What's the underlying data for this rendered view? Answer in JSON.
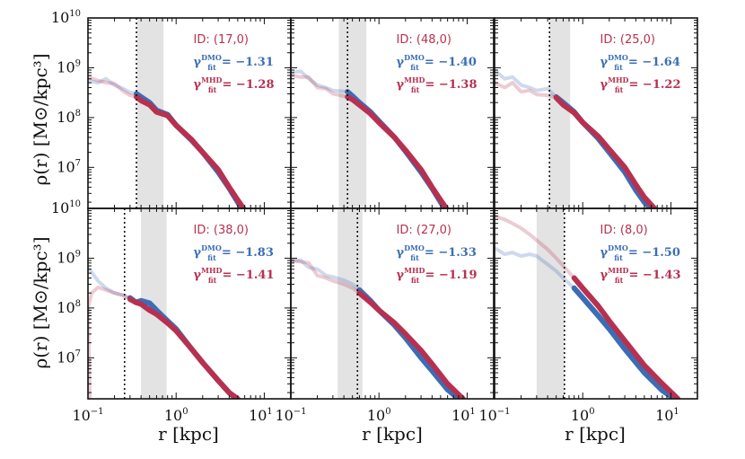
{
  "chart_data": {
    "type": "line",
    "layout": "2x3 grid of log-log panels",
    "xlabel": "r [kpc]",
    "ylabel": "ρ(r) [M⊙/kpc³]",
    "xlim": [
      0.1,
      20
    ],
    "ylim": [
      1500000.0,
      10000000000.0
    ],
    "x_ticks": [
      "10",
      "10",
      "10"
    ],
    "x_tick_exponents": [
      "−1",
      "0",
      "1"
    ],
    "y_ticks": [
      "10",
      "10",
      "10",
      "10",
      "10"
    ],
    "y_tick_exponents": [
      "7",
      "8",
      "9",
      "10",
      "10"
    ],
    "colors": {
      "dmo": "#3b6db5",
      "mhd": "#b83050",
      "shade": "#e3e3e3"
    },
    "gamma_dmo_symbol": "γ",
    "gamma_dmo_sup": "DMO",
    "gamma_mhd_sup": "MHD",
    "gamma_sub": "fit",
    "panels": [
      {
        "id": "ID: (17,0)",
        "gamma_dmo": "= −1.31",
        "gamma_mhd": "= −1.28",
        "shade": [
          0.36,
          0.72
        ],
        "vline": 0.355,
        "dmo": [
          [
            0.1,
            550000000.0
          ],
          [
            0.13,
            500000000.0
          ],
          [
            0.16,
            600000000.0
          ],
          [
            0.2,
            450000000.0
          ],
          [
            0.25,
            380000000.0
          ],
          [
            0.3,
            320000000.0
          ],
          [
            0.355,
            300000000.0
          ],
          [
            0.4,
            260000000.0
          ],
          [
            0.5,
            200000000.0
          ],
          [
            0.6,
            140000000.0
          ],
          [
            0.8,
            115000000.0
          ],
          [
            1.0,
            70000000.0
          ],
          [
            1.5,
            35000000.0
          ],
          [
            2.0,
            20000000.0
          ],
          [
            3.0,
            8000000.0
          ],
          [
            4.0,
            3800000.0
          ],
          [
            5.0,
            2000000.0
          ],
          [
            5.5,
            1500000.0
          ]
        ],
        "mhd": [
          [
            0.1,
            650000000.0
          ],
          [
            0.13,
            550000000.0
          ],
          [
            0.16,
            500000000.0
          ],
          [
            0.2,
            480000000.0
          ],
          [
            0.25,
            340000000.0
          ],
          [
            0.3,
            280000000.0
          ],
          [
            0.355,
            260000000.0
          ],
          [
            0.4,
            220000000.0
          ],
          [
            0.5,
            180000000.0
          ],
          [
            0.6,
            130000000.0
          ],
          [
            0.8,
            110000000.0
          ],
          [
            1.0,
            70000000.0
          ],
          [
            1.5,
            36000000.0
          ],
          [
            2.0,
            20000000.0
          ],
          [
            3.0,
            9000000.0
          ],
          [
            4.0,
            4000000.0
          ],
          [
            5.0,
            2200000.0
          ],
          [
            5.8,
            1500000.0
          ]
        ]
      },
      {
        "id": "ID: (48,0)",
        "gamma_dmo": "= −1.40",
        "gamma_mhd": "= −1.38",
        "shade": [
          0.35,
          0.72
        ],
        "vline": 0.44,
        "dmo": [
          [
            0.1,
            800000000.0
          ],
          [
            0.13,
            850000000.0
          ],
          [
            0.16,
            600000000.0
          ],
          [
            0.2,
            450000000.0
          ],
          [
            0.25,
            400000000.0
          ],
          [
            0.3,
            350000000.0
          ],
          [
            0.44,
            330000000.0
          ],
          [
            0.5,
            270000000.0
          ],
          [
            0.6,
            200000000.0
          ],
          [
            0.8,
            130000000.0
          ],
          [
            1.0,
            85000000.0
          ],
          [
            1.5,
            40000000.0
          ],
          [
            2.0,
            21000000.0
          ],
          [
            3.0,
            8000000.0
          ],
          [
            4.0,
            3800000.0
          ],
          [
            5.0,
            2000000.0
          ],
          [
            5.6,
            1500000.0
          ]
        ],
        "mhd": [
          [
            0.1,
            700000000.0
          ],
          [
            0.13,
            650000000.0
          ],
          [
            0.16,
            650000000.0
          ],
          [
            0.2,
            400000000.0
          ],
          [
            0.25,
            380000000.0
          ],
          [
            0.3,
            300000000.0
          ],
          [
            0.44,
            260000000.0
          ],
          [
            0.5,
            230000000.0
          ],
          [
            0.6,
            180000000.0
          ],
          [
            0.8,
            120000000.0
          ],
          [
            1.0,
            80000000.0
          ],
          [
            1.5,
            40000000.0
          ],
          [
            2.0,
            22000000.0
          ],
          [
            3.0,
            9000000.0
          ],
          [
            4.0,
            4000000.0
          ],
          [
            5.0,
            2200000.0
          ],
          [
            5.8,
            1500000.0
          ]
        ]
      },
      {
        "id": "ID: (25,0)",
        "gamma_dmo": "= −1.64",
        "gamma_mhd": "= −1.22",
        "shade": [
          0.42,
          0.72
        ],
        "vline": 0.42,
        "dmo": [
          [
            0.1,
            900000000.0
          ],
          [
            0.13,
            600000000.0
          ],
          [
            0.16,
            650000000.0
          ],
          [
            0.2,
            450000000.0
          ],
          [
            0.25,
            400000000.0
          ],
          [
            0.3,
            350000000.0
          ],
          [
            0.4,
            380000000.0
          ],
          [
            0.5,
            260000000.0
          ],
          [
            0.6,
            200000000.0
          ],
          [
            0.8,
            130000000.0
          ],
          [
            1.0,
            80000000.0
          ],
          [
            1.5,
            38000000.0
          ],
          [
            2.0,
            20000000.0
          ],
          [
            3.0,
            8000000.0
          ],
          [
            4.0,
            3500000.0
          ],
          [
            5.0,
            2000000.0
          ],
          [
            6.0,
            1500000.0
          ]
        ],
        "mhd": [
          [
            0.1,
            500000000.0
          ],
          [
            0.13,
            400000000.0
          ],
          [
            0.16,
            500000000.0
          ],
          [
            0.2,
            330000000.0
          ],
          [
            0.25,
            350000000.0
          ],
          [
            0.3,
            290000000.0
          ],
          [
            0.4,
            280000000.0
          ],
          [
            0.5,
            250000000.0
          ],
          [
            0.6,
            180000000.0
          ],
          [
            0.8,
            125000000.0
          ],
          [
            1.0,
            80000000.0
          ],
          [
            1.5,
            42000000.0
          ],
          [
            2.0,
            23000000.0
          ],
          [
            3.0,
            10000000.0
          ],
          [
            4.0,
            4500000.0
          ],
          [
            5.0,
            2500000.0
          ],
          [
            6.5,
            1500000.0
          ]
        ]
      },
      {
        "id": "ID: (38,0)",
        "gamma_dmo": "= −1.83",
        "gamma_mhd": "= −1.41",
        "shade": [
          0.4,
          0.78
        ],
        "vline": 0.26,
        "dmo": [
          [
            0.1,
            650000000.0
          ],
          [
            0.13,
            350000000.0
          ],
          [
            0.16,
            250000000.0
          ],
          [
            0.2,
            200000000.0
          ],
          [
            0.25,
            180000000.0
          ],
          [
            0.3,
            160000000.0
          ],
          [
            0.35,
            130000000.0
          ],
          [
            0.4,
            140000000.0
          ],
          [
            0.5,
            125000000.0
          ],
          [
            0.6,
            90000000.0
          ],
          [
            0.8,
            55000000.0
          ],
          [
            1.0,
            38000000.0
          ],
          [
            1.5,
            15000000.0
          ],
          [
            2.0,
            8000000.0
          ],
          [
            3.0,
            3500000.0
          ],
          [
            4.0,
            2000000.0
          ],
          [
            4.8,
            1500000.0
          ]
        ],
        "mhd": [
          [
            0.1,
            100000000.0
          ],
          [
            0.105,
            1500000.0
          ],
          [
            0.1,
            100000000.0
          ],
          [
            0.11,
            200000000.0
          ],
          [
            0.13,
            260000000.0
          ],
          [
            0.16,
            230000000.0
          ],
          [
            0.2,
            200000000.0
          ],
          [
            0.25,
            180000000.0
          ],
          [
            0.3,
            150000000.0
          ],
          [
            0.35,
            130000000.0
          ],
          [
            0.4,
            120000000.0
          ],
          [
            0.5,
            90000000.0
          ],
          [
            0.6,
            75000000.0
          ],
          [
            0.8,
            50000000.0
          ],
          [
            1.0,
            35000000.0
          ],
          [
            1.5,
            15000000.0
          ],
          [
            2.0,
            8000000.0
          ],
          [
            3.0,
            3500000.0
          ],
          [
            4.0,
            2000000.0
          ],
          [
            5.0,
            1500000.0
          ]
        ]
      },
      {
        "id": "ID: (27,0)",
        "gamma_dmo": "= −1.33",
        "gamma_mhd": "= −1.19",
        "shade": [
          0.34,
          0.65
        ],
        "vline": 0.57,
        "dmo": [
          [
            0.1,
            900000000.0
          ],
          [
            0.13,
            900000000.0
          ],
          [
            0.16,
            650000000.0
          ],
          [
            0.2,
            600000000.0
          ],
          [
            0.25,
            450000000.0
          ],
          [
            0.3,
            420000000.0
          ],
          [
            0.4,
            360000000.0
          ],
          [
            0.5,
            300000000.0
          ],
          [
            0.6,
            230000000.0
          ],
          [
            0.8,
            140000000.0
          ],
          [
            1.0,
            90000000.0
          ],
          [
            1.5,
            45000000.0
          ],
          [
            2.0,
            25000000.0
          ],
          [
            3.0,
            10000000.0
          ],
          [
            4.0,
            5500000.0
          ],
          [
            6.0,
            2300000.0
          ],
          [
            8.0,
            1500000.0
          ]
        ],
        "mhd": [
          [
            0.1,
            900000000.0
          ],
          [
            0.13,
            850000000.0
          ],
          [
            0.16,
            800000000.0
          ],
          [
            0.2,
            450000000.0
          ],
          [
            0.25,
            400000000.0
          ],
          [
            0.3,
            350000000.0
          ],
          [
            0.4,
            300000000.0
          ],
          [
            0.5,
            250000000.0
          ],
          [
            0.6,
            200000000.0
          ],
          [
            0.8,
            130000000.0
          ],
          [
            1.0,
            90000000.0
          ],
          [
            1.5,
            50000000.0
          ],
          [
            2.0,
            30000000.0
          ],
          [
            3.0,
            14000000.0
          ],
          [
            4.0,
            7500000.0
          ],
          [
            6.0,
            3000000.0
          ],
          [
            9.0,
            1500000.0
          ]
        ]
      },
      {
        "id": "ID: (8,0)",
        "gamma_dmo": "= −1.50",
        "gamma_mhd": "= −1.43",
        "shade": [
          0.3,
          0.62
        ],
        "vline": 0.62,
        "dmo": [
          [
            0.1,
            1600000000.0
          ],
          [
            0.13,
            1200000000.0
          ],
          [
            0.16,
            1300000000.0
          ],
          [
            0.2,
            1100000000.0
          ],
          [
            0.25,
            1200000000.0
          ],
          [
            0.3,
            1100000000.0
          ],
          [
            0.4,
            750000000.0
          ],
          [
            0.5,
            550000000.0
          ],
          [
            0.6,
            400000000.0
          ],
          [
            0.8,
            250000000.0
          ],
          [
            1.0,
            160000000.0
          ],
          [
            1.5,
            70000000.0
          ],
          [
            2.0,
            38000000.0
          ],
          [
            3.0,
            15000000.0
          ],
          [
            5.0,
            5000000.0
          ],
          [
            8.0,
            2200000.0
          ],
          [
            11.0,
            1500000.0
          ]
        ],
        "mhd": [
          [
            0.1,
            7000000000.0
          ],
          [
            0.13,
            6000000000.0
          ],
          [
            0.16,
            5000000000.0
          ],
          [
            0.2,
            4000000000.0
          ],
          [
            0.25,
            3000000000.0
          ],
          [
            0.3,
            2300000000.0
          ],
          [
            0.4,
            1500000000.0
          ],
          [
            0.5,
            1000000000.0
          ],
          [
            0.6,
            700000000.0
          ],
          [
            0.8,
            400000000.0
          ],
          [
            1.0,
            250000000.0
          ],
          [
            1.5,
            110000000.0
          ],
          [
            2.0,
            55000000.0
          ],
          [
            3.0,
            22000000.0
          ],
          [
            5.0,
            7000000.0
          ],
          [
            8.0,
            3000000.0
          ],
          [
            12.0,
            1500000.0
          ]
        ]
      }
    ]
  }
}
